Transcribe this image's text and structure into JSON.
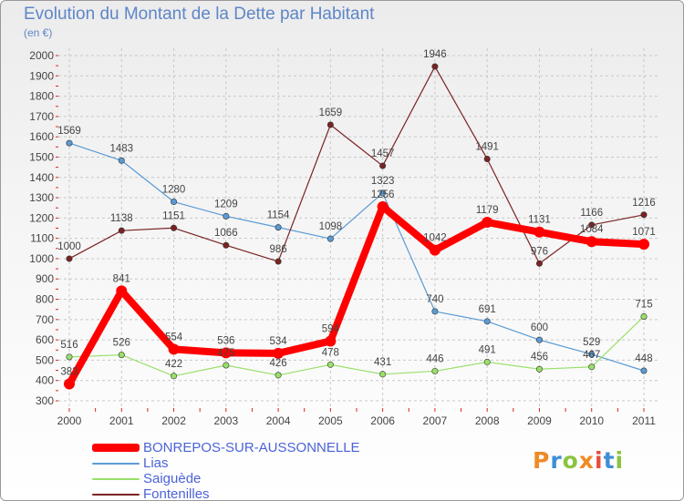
{
  "title": "Evolution du Montant de la Dette par Habitant",
  "subtitle": "(en €)",
  "brand": {
    "text": "Proxiti",
    "colors": [
      "#f08a24",
      "#3e8fd6",
      "#8bc53f",
      "#f08a24",
      "#e84c3d",
      "#3e8fd6",
      "#8bc53f"
    ]
  },
  "chart_data": {
    "type": "line",
    "x": [
      "2000",
      "2001",
      "2002",
      "2003",
      "2004",
      "2005",
      "2006",
      "2007",
      "2008",
      "2009",
      "2010",
      "2011"
    ],
    "ylim": [
      300,
      2000
    ],
    "yticks": [
      300,
      400,
      500,
      600,
      700,
      800,
      900,
      1000,
      1100,
      1200,
      1300,
      1400,
      1500,
      1600,
      1700,
      1800,
      1900,
      2000
    ],
    "grid": true,
    "legend_position": "bottom-left",
    "series": [
      {
        "name": "BONREPOS-SUR-AUSSONNELLE",
        "color": "#ff0000",
        "values": [
          383,
          841,
          554,
          536,
          534,
          594,
          1256,
          1042,
          1179,
          1131,
          1084,
          1071
        ]
      },
      {
        "name": "Lias",
        "color": "#5b9bd5",
        "values": [
          1569,
          1483,
          1280,
          1209,
          1154,
          1098,
          1323,
          740,
          691,
          600,
          529,
          448
        ]
      },
      {
        "name": "Saiguède",
        "color": "#99e06a",
        "values": [
          516,
          526,
          422,
          475,
          426,
          478,
          431,
          446,
          491,
          456,
          467,
          715
        ]
      },
      {
        "name": "Fontenilles",
        "color": "#7b2323",
        "values": [
          1000,
          1138,
          1151,
          1066,
          986,
          1659,
          1457,
          1946,
          1491,
          976,
          1166,
          1216
        ]
      }
    ],
    "labels": [
      [
        "383",
        "841",
        "554",
        "536",
        "534",
        "594",
        "1256",
        "1042",
        "1179",
        "1131",
        "1084",
        "1071"
      ],
      [
        "1569",
        "1483",
        "1280",
        "1209",
        "1154",
        "1098",
        "1323",
        "740",
        "691",
        "600",
        "529",
        "448"
      ],
      [
        "516",
        "526",
        "422",
        "475",
        "426",
        "478",
        "431",
        "446",
        "491",
        "456",
        "467",
        "715"
      ],
      [
        "1000",
        "1138",
        "1151",
        "1066",
        "986",
        "1659",
        "1457",
        "1946",
        "1491",
        "976",
        "1166",
        "1216"
      ]
    ]
  }
}
